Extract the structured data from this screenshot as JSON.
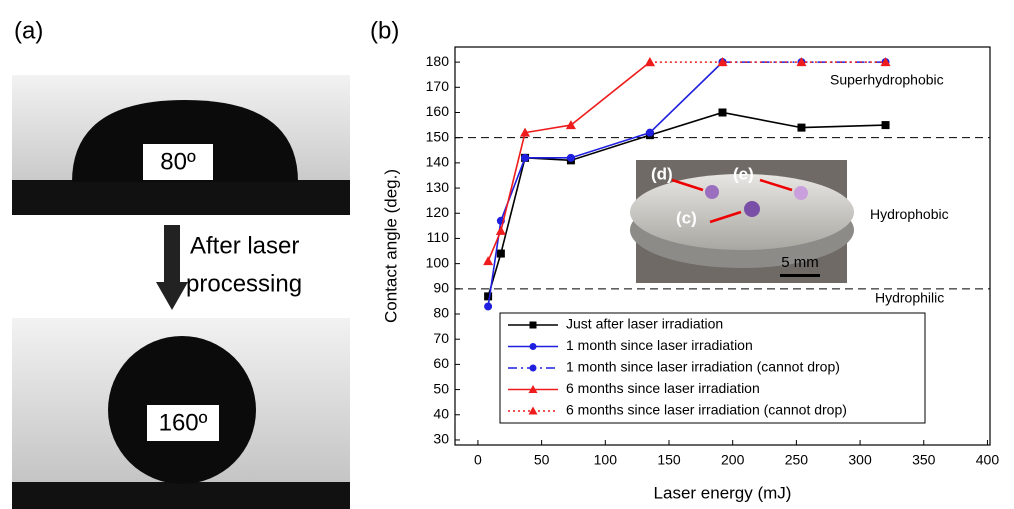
{
  "figure": {
    "panel_a_label": "(a)",
    "panel_b_label": "(b)",
    "top_angle": "80º",
    "bottom_angle": "160º",
    "arrow_text_1": "After laser",
    "arrow_text_2": "processing",
    "inset_labels": [
      "(d)",
      "(e)",
      "(c)"
    ],
    "scale_bar": "5 mm"
  },
  "chart_data": {
    "type": "line",
    "xlabel": "Laser energy (mJ)",
    "ylabel": "Contact angle (deg.)",
    "xlim": [
      -18,
      402
    ],
    "ylim": [
      28,
      186
    ],
    "xticks": [
      0,
      50,
      100,
      150,
      200,
      250,
      300,
      350,
      400
    ],
    "yticks": [
      30,
      40,
      50,
      60,
      70,
      80,
      90,
      100,
      110,
      120,
      130,
      140,
      150,
      160,
      170,
      180
    ],
    "hlines": [
      150,
      90
    ],
    "annotations": [
      "Superhydrophobic",
      "Hydrophobic",
      "Hydrophilic"
    ],
    "series": [
      {
        "name": "Just after laser irradiation",
        "color": "#000000",
        "marker": "square",
        "dash": "solid",
        "x": [
          8,
          18,
          37,
          73,
          135,
          192,
          254,
          320
        ],
        "values": [
          87,
          104,
          142,
          141,
          151,
          160,
          154,
          155
        ]
      },
      {
        "name": "1 month since laser irradiation",
        "color": "#1f1fe0",
        "marker": "circle",
        "dash": "solid",
        "x": [
          8,
          18,
          37,
          73,
          135,
          192
        ],
        "values": [
          83,
          117,
          142,
          142,
          152,
          180
        ]
      },
      {
        "name": "1 month since laser irradiation (cannot drop)",
        "color": "#1f1fe0",
        "marker": "circle",
        "dash": "dashdot",
        "x": [
          192,
          254,
          320
        ],
        "values": [
          180,
          180,
          180
        ]
      },
      {
        "name": "6 months since laser irradiation",
        "color": "#ee1c1c",
        "marker": "triangle",
        "dash": "solid",
        "x": [
          8,
          18,
          37,
          73,
          135
        ],
        "values": [
          101,
          113,
          152,
          155,
          180
        ]
      },
      {
        "name": "6 months since laser irradiation (cannot drop)",
        "color": "#ee1c1c",
        "marker": "triangle",
        "dash": "dot",
        "x": [
          135,
          192,
          254,
          320
        ],
        "values": [
          180,
          180,
          180,
          180
        ]
      }
    ]
  }
}
